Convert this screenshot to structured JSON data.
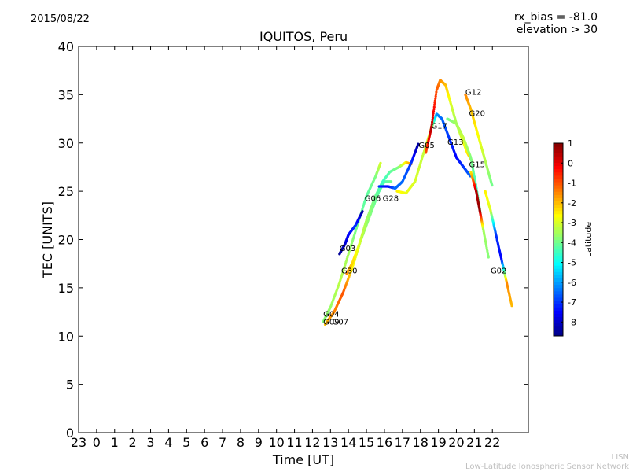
{
  "header": {
    "date": "2015/08/22",
    "rx_bias": "rx_bias = -81.0",
    "elevation": "elevation > 30"
  },
  "footer": {
    "credit_short": "LISN",
    "credit_long": "Low-Latitude Ionospheric Sensor Network"
  },
  "chart_data": {
    "type": "scatter",
    "title": "IQUITOS, Peru",
    "xlabel": "Time [UT]",
    "ylabel": "TEC [UNITS]",
    "xlim": [
      0,
      25
    ],
    "ylim": [
      0,
      40
    ],
    "x_tick_labels": [
      "23",
      "0",
      "1",
      "2",
      "3",
      "4",
      "5",
      "6",
      "7",
      "8",
      "9",
      "10",
      "11",
      "12",
      "13",
      "14",
      "15",
      "16",
      "17",
      "18",
      "19",
      "20",
      "21",
      "22"
    ],
    "y_ticks": [
      0,
      5,
      10,
      15,
      20,
      25,
      30,
      35,
      40
    ],
    "grid": false,
    "colorbar": {
      "label": "Latitude",
      "range": [
        -8.7,
        1
      ],
      "ticks": [
        1,
        0,
        -1,
        -2,
        -3,
        -4,
        -5,
        -6,
        -7,
        -8
      ],
      "colormap": "jet"
    },
    "series": [
      {
        "name": "G06",
        "label_at": [
          15.9,
          24.0
        ],
        "points": [
          [
            13.6,
            11.5,
            -3.8
          ],
          [
            14.0,
            13.0,
            -3.6
          ],
          [
            14.5,
            15.5,
            -3.3
          ],
          [
            15.0,
            18.5,
            -3.5
          ],
          [
            15.5,
            21.5,
            -4.0
          ],
          [
            16.0,
            24.5,
            -4.2
          ],
          [
            16.5,
            26.5,
            -3.9
          ],
          [
            16.8,
            28.0,
            -3.0
          ]
        ]
      },
      {
        "name": "G28",
        "label_at": [
          16.9,
          24.0
        ],
        "points": [
          [
            13.7,
            11.2,
            -2.0
          ],
          [
            14.2,
            12.5,
            -1.5
          ],
          [
            14.7,
            14.5,
            -1.0
          ],
          [
            15.2,
            17.0,
            -2.5
          ],
          [
            15.7,
            20.0,
            -3.5
          ],
          [
            16.2,
            22.5,
            -3.8
          ],
          [
            16.7,
            25.0,
            -4.2
          ],
          [
            17.0,
            26.0,
            -4.3
          ],
          [
            17.4,
            26.0,
            -4.0
          ]
        ]
      },
      {
        "name": "G03",
        "label_at": [
          14.5,
          18.8
        ],
        "points": [
          [
            14.5,
            18.5,
            -8.5
          ],
          [
            14.8,
            19.5,
            -8.0
          ],
          [
            15.0,
            20.5,
            -7.5
          ],
          [
            15.4,
            21.5,
            -7.0
          ],
          [
            15.8,
            23.0,
            -8.5
          ]
        ]
      },
      {
        "name": "G30",
        "label_at": [
          14.6,
          16.5
        ],
        "points": [
          [
            14.9,
            16.5,
            -1.5
          ],
          [
            15.2,
            17.5,
            -2.2
          ],
          [
            15.6,
            19.5,
            -3.0
          ],
          [
            16.0,
            22.0,
            -3.5
          ],
          [
            16.5,
            24.5,
            -4.0
          ],
          [
            16.9,
            26.0,
            -4.5
          ],
          [
            17.3,
            27.0,
            -4.2
          ],
          [
            17.8,
            27.5,
            -3.8
          ],
          [
            18.2,
            28.0,
            -2.5
          ],
          [
            18.5,
            27.8,
            -1.5
          ]
        ]
      },
      {
        "name": "G05",
        "label_at": [
          18.9,
          29.5
        ],
        "points": [
          [
            16.7,
            25.5,
            -7.0
          ],
          [
            17.2,
            25.5,
            -7.5
          ],
          [
            17.6,
            25.3,
            -6.5
          ],
          [
            18.0,
            26.0,
            -6.5
          ],
          [
            18.5,
            28.0,
            -7.0
          ],
          [
            18.9,
            30.0,
            -8.5
          ]
        ]
      },
      {
        "name": "G17",
        "label_at": [
          19.6,
          31.5
        ],
        "points": [
          [
            17.7,
            25.0,
            -2.5
          ],
          [
            18.2,
            24.8,
            -2.8
          ],
          [
            18.7,
            26.0,
            -3.0
          ],
          [
            19.1,
            28.5,
            -3.2
          ],
          [
            19.6,
            31.5,
            -3.0
          ],
          [
            19.9,
            33.0,
            -6.0
          ],
          [
            20.2,
            32.5,
            -6.5
          ],
          [
            20.6,
            30.5,
            -7.0
          ],
          [
            21.0,
            28.5,
            -7.5
          ],
          [
            21.4,
            27.5,
            -7.0
          ],
          [
            21.8,
            26.5,
            -6.5
          ]
        ]
      },
      {
        "name": "G13",
        "label_at": [
          20.5,
          29.8
        ],
        "points": [
          [
            19.3,
            29.0,
            -1.0
          ],
          [
            19.6,
            31.5,
            0.5
          ],
          [
            19.9,
            35.5,
            -1.0
          ],
          [
            20.1,
            36.5,
            -1.5
          ],
          [
            20.4,
            36.0,
            -2.0
          ],
          [
            20.7,
            34.0,
            -3.0
          ],
          [
            21.0,
            32.0,
            -3.5
          ],
          [
            21.3,
            30.5,
            -3.0
          ],
          [
            21.6,
            29.0,
            -2.5
          ],
          [
            21.9,
            28.0,
            -2.0
          ]
        ]
      },
      {
        "name": "G12",
        "label_at": [
          21.5,
          35.0
        ],
        "points": [
          [
            21.5,
            35.0,
            -1.5
          ],
          [
            21.8,
            33.5,
            -2.0
          ],
          [
            22.1,
            31.5,
            -2.5
          ],
          [
            22.4,
            29.5,
            -3.0
          ],
          [
            22.7,
            27.5,
            -3.5
          ],
          [
            23.0,
            25.5,
            -4.0
          ]
        ]
      },
      {
        "name": "G20",
        "label_at": [
          21.7,
          32.8
        ],
        "points": [
          [
            20.5,
            32.5,
            -4.0
          ],
          [
            21.0,
            32.0,
            -3.5
          ],
          [
            21.4,
            30.5,
            -3.2
          ],
          [
            21.8,
            28.5,
            -3.8
          ],
          [
            22.1,
            25.5,
            -4.5
          ],
          [
            22.4,
            22.0,
            -4.0
          ]
        ]
      },
      {
        "name": "G15",
        "label_at": [
          21.7,
          27.5
        ],
        "points": [
          [
            21.8,
            27.0,
            -2.5
          ],
          [
            22.1,
            25.0,
            0.5
          ],
          [
            22.3,
            23.0,
            0.8
          ],
          [
            22.5,
            21.0,
            -3.5
          ],
          [
            22.8,
            18.0,
            -3.8
          ]
        ]
      },
      {
        "name": "G02",
        "label_at": [
          22.9,
          16.5
        ],
        "points": [
          [
            22.6,
            25.0,
            -2.5
          ],
          [
            22.9,
            23.0,
            -3.0
          ],
          [
            23.2,
            20.5,
            -7.0
          ],
          [
            23.5,
            18.0,
            -7.5
          ],
          [
            23.8,
            15.5,
            -1.5
          ],
          [
            24.1,
            13.0,
            -2.0
          ]
        ]
      }
    ],
    "extra_labels": [
      {
        "name": "G04",
        "label_at": [
          13.6,
          12.0
        ]
      },
      {
        "name": "G07",
        "label_at": [
          14.1,
          11.2
        ]
      },
      {
        "name": "G09",
        "label_at": [
          13.6,
          11.2
        ]
      }
    ]
  }
}
